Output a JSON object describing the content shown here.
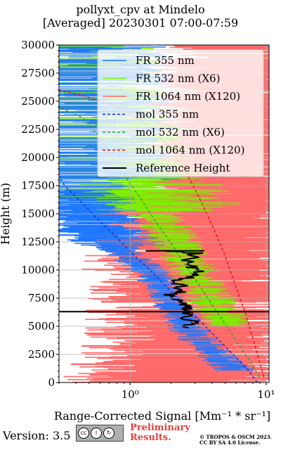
{
  "header": {
    "title": "pollyxt_cpv at Mindelo",
    "subtitle": "[Averaged] 20230301 07:00-07:59"
  },
  "footer": {
    "version": "Version: 3.5",
    "cc_icons": [
      "cc-icon",
      "by-icon",
      "sa-icon"
    ],
    "cc_small": "BY   SA",
    "preliminary_1": "Preliminary",
    "preliminary_2": "Results.",
    "copyright_1": "© TROPOS & OSCM 2023.",
    "copyright_2": "CC BY SA 4.0 License."
  },
  "chart_data": {
    "type": "line",
    "xlabel": "Range-Corrected Signal [Mm⁻¹ * sr⁻¹]",
    "ylabel": "Height (m)",
    "xscale": "log",
    "xlim": [
      0.3,
      10.5
    ],
    "ylim": [
      0,
      30000
    ],
    "xticks": [
      {
        "value": 1,
        "label": "10⁰"
      },
      {
        "value": 10,
        "label": "10¹"
      }
    ],
    "yticks": [
      0,
      2500,
      5000,
      7500,
      10000,
      12500,
      15000,
      17500,
      20000,
      22500,
      25000,
      27500,
      30000
    ],
    "grid": true,
    "legend_position": "top-right",
    "series": [
      {
        "name": "FR 355 nm",
        "color": "#1f78ff",
        "style": "solid",
        "points": [
          [
            8.5,
            300
          ],
          [
            6,
            1000
          ],
          [
            4.6,
            2000
          ],
          [
            3.7,
            3000
          ],
          [
            3.0,
            4000
          ],
          [
            2.6,
            5000
          ],
          [
            2.3,
            6000
          ],
          [
            2.0,
            7000
          ],
          [
            1.8,
            8000
          ],
          [
            1.6,
            9000
          ],
          [
            1.3,
            10000
          ],
          [
            1.0,
            11000
          ],
          [
            0.8,
            12000
          ],
          [
            0.6,
            13500
          ],
          [
            0.5,
            15000
          ],
          [
            0.42,
            17000
          ],
          [
            0.38,
            20000
          ],
          [
            0.35,
            25000
          ],
          [
            0.33,
            30000
          ]
        ]
      },
      {
        "name": "FR 532 nm (X6)",
        "color": "#7cf000",
        "style": "solid",
        "points": [
          [
            9,
            300
          ],
          [
            7.5,
            1500
          ],
          [
            6.3,
            3000
          ],
          [
            5.5,
            4500
          ],
          [
            4.7,
            6000
          ],
          [
            4.1,
            7000
          ],
          [
            3.6,
            8000
          ],
          [
            3.2,
            9000
          ],
          [
            2.9,
            10000
          ],
          [
            2.5,
            11000
          ],
          [
            2.3,
            12000
          ],
          [
            2.0,
            13000
          ],
          [
            1.8,
            14000
          ],
          [
            1.5,
            15000
          ],
          [
            1.2,
            16500
          ],
          [
            0.9,
            18000
          ],
          [
            0.6,
            20000
          ],
          [
            0.45,
            23000
          ],
          [
            0.35,
            27000
          ],
          [
            0.32,
            30000
          ]
        ]
      },
      {
        "name": "FR 1064 nm (X120)",
        "color": "#ff6a6a",
        "style": "solid",
        "points": [
          [
            2.5,
            300
          ],
          [
            3,
            3000
          ],
          [
            3.5,
            6000
          ],
          [
            4,
            8000
          ],
          [
            3.5,
            10000
          ],
          [
            4,
            13000
          ],
          [
            5,
            16000
          ],
          [
            5,
            20000
          ],
          [
            6,
            25000
          ],
          [
            7,
            30000
          ]
        ]
      },
      {
        "name": "mol 355 nm",
        "color": "#1a2ad8",
        "style": "dashed",
        "points": [
          [
            8.6,
            0
          ],
          [
            7.5,
            1000
          ],
          [
            5.7,
            2500
          ],
          [
            4.3,
            4000
          ],
          [
            3.25,
            5500
          ],
          [
            2.44,
            7000
          ],
          [
            1.85,
            8500
          ],
          [
            1.4,
            10000
          ],
          [
            1.03,
            11500
          ],
          [
            0.78,
            13000
          ],
          [
            0.58,
            14500
          ],
          [
            0.44,
            16000
          ],
          [
            0.33,
            17500
          ],
          [
            0.3,
            18300
          ]
        ]
      },
      {
        "name": "mol 532 nm (X6)",
        "color": "#2aa02a",
        "style": "dashed",
        "points": [
          [
            8.9,
            500
          ],
          [
            7.5,
            2000
          ],
          [
            5.8,
            4000
          ],
          [
            4.5,
            6000
          ],
          [
            3.5,
            8000
          ],
          [
            2.7,
            10000
          ],
          [
            2.1,
            12000
          ],
          [
            1.6,
            14000
          ],
          [
            1.25,
            16000
          ],
          [
            0.96,
            18000
          ],
          [
            0.74,
            20000
          ],
          [
            0.58,
            22000
          ],
          [
            0.45,
            23500
          ],
          [
            0.3,
            24500
          ]
        ]
      },
      {
        "name": "mol 1064 nm (X120)",
        "color": "#e01010",
        "style": "dashed",
        "points": [
          [
            9.6,
            500
          ],
          [
            8.4,
            3000
          ],
          [
            7.1,
            6000
          ],
          [
            5.8,
            9000
          ],
          [
            4.9,
            11500
          ],
          [
            4.0,
            14000
          ],
          [
            3.2,
            16500
          ],
          [
            2.5,
            19000
          ],
          [
            1.9,
            21000
          ],
          [
            1.3,
            23000
          ],
          [
            0.8,
            24500
          ],
          [
            0.45,
            25500
          ],
          [
            0.3,
            26000
          ]
        ]
      },
      {
        "name": "Reference Height",
        "color": "#000000",
        "style": "solid",
        "points": [
          [
            1.8,
            11700
          ],
          [
            3.0,
            11500
          ],
          [
            2.5,
            10500
          ],
          [
            3.2,
            10000
          ],
          [
            2.8,
            9500
          ],
          [
            2.2,
            9000
          ],
          [
            2.5,
            8200
          ],
          [
            2.0,
            7800
          ],
          [
            2.4,
            7000
          ],
          [
            2.8,
            6500
          ],
          [
            2.6,
            5600
          ],
          [
            3.0,
            5300
          ],
          [
            2.5,
            4800
          ]
        ]
      }
    ]
  }
}
